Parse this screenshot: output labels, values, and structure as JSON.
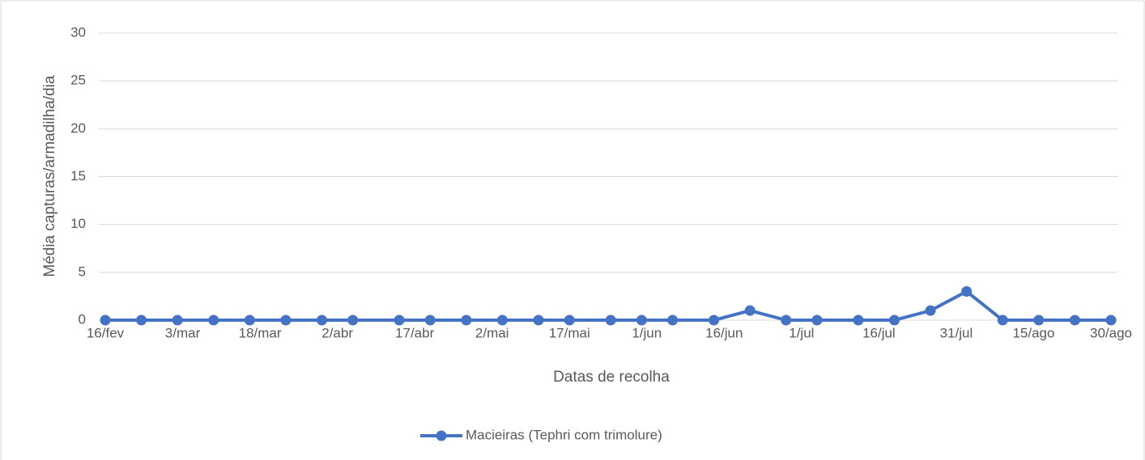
{
  "chart_data": {
    "type": "line",
    "x_label": "Datas de recolha",
    "y_label": "Média capturas/armadilha/dia",
    "x": [
      47,
      54,
      61,
      68,
      75,
      82,
      89,
      95,
      104,
      110,
      117,
      124,
      131,
      137,
      145,
      151,
      157,
      165,
      172,
      179,
      185,
      193,
      200,
      207,
      214,
      221,
      228,
      235,
      242
    ],
    "series": [
      {
        "name": "Macieiras (Tephri com trimolure)",
        "color": "#4472c4",
        "values": [
          0,
          0,
          0,
          0,
          0,
          0,
          0,
          0,
          0,
          0,
          0,
          0,
          0,
          0,
          0,
          0,
          0,
          0,
          1,
          0,
          0,
          0,
          0,
          1,
          3,
          0,
          0,
          0,
          0
        ]
      }
    ],
    "xlim": [
      47,
      242
    ],
    "xticks": [
      {
        "value": 47,
        "label": "16/fev"
      },
      {
        "value": 62,
        "label": "3/mar"
      },
      {
        "value": 77,
        "label": "18/mar"
      },
      {
        "value": 92,
        "label": "2/abr"
      },
      {
        "value": 107,
        "label": "17/abr"
      },
      {
        "value": 122,
        "label": "2/mai"
      },
      {
        "value": 137,
        "label": "17/mai"
      },
      {
        "value": 152,
        "label": "1/jun"
      },
      {
        "value": 167,
        "label": "16/jun"
      },
      {
        "value": 182,
        "label": "1/jul"
      },
      {
        "value": 197,
        "label": "16/jul"
      },
      {
        "value": 212,
        "label": "31/jul"
      },
      {
        "value": 227,
        "label": "15/ago"
      },
      {
        "value": 242,
        "label": "30/ago"
      }
    ],
    "ylim": [
      0,
      30
    ],
    "yticks": [
      0,
      5,
      10,
      15,
      20,
      25,
      30
    ],
    "grid": true,
    "legend": "bottom"
  }
}
